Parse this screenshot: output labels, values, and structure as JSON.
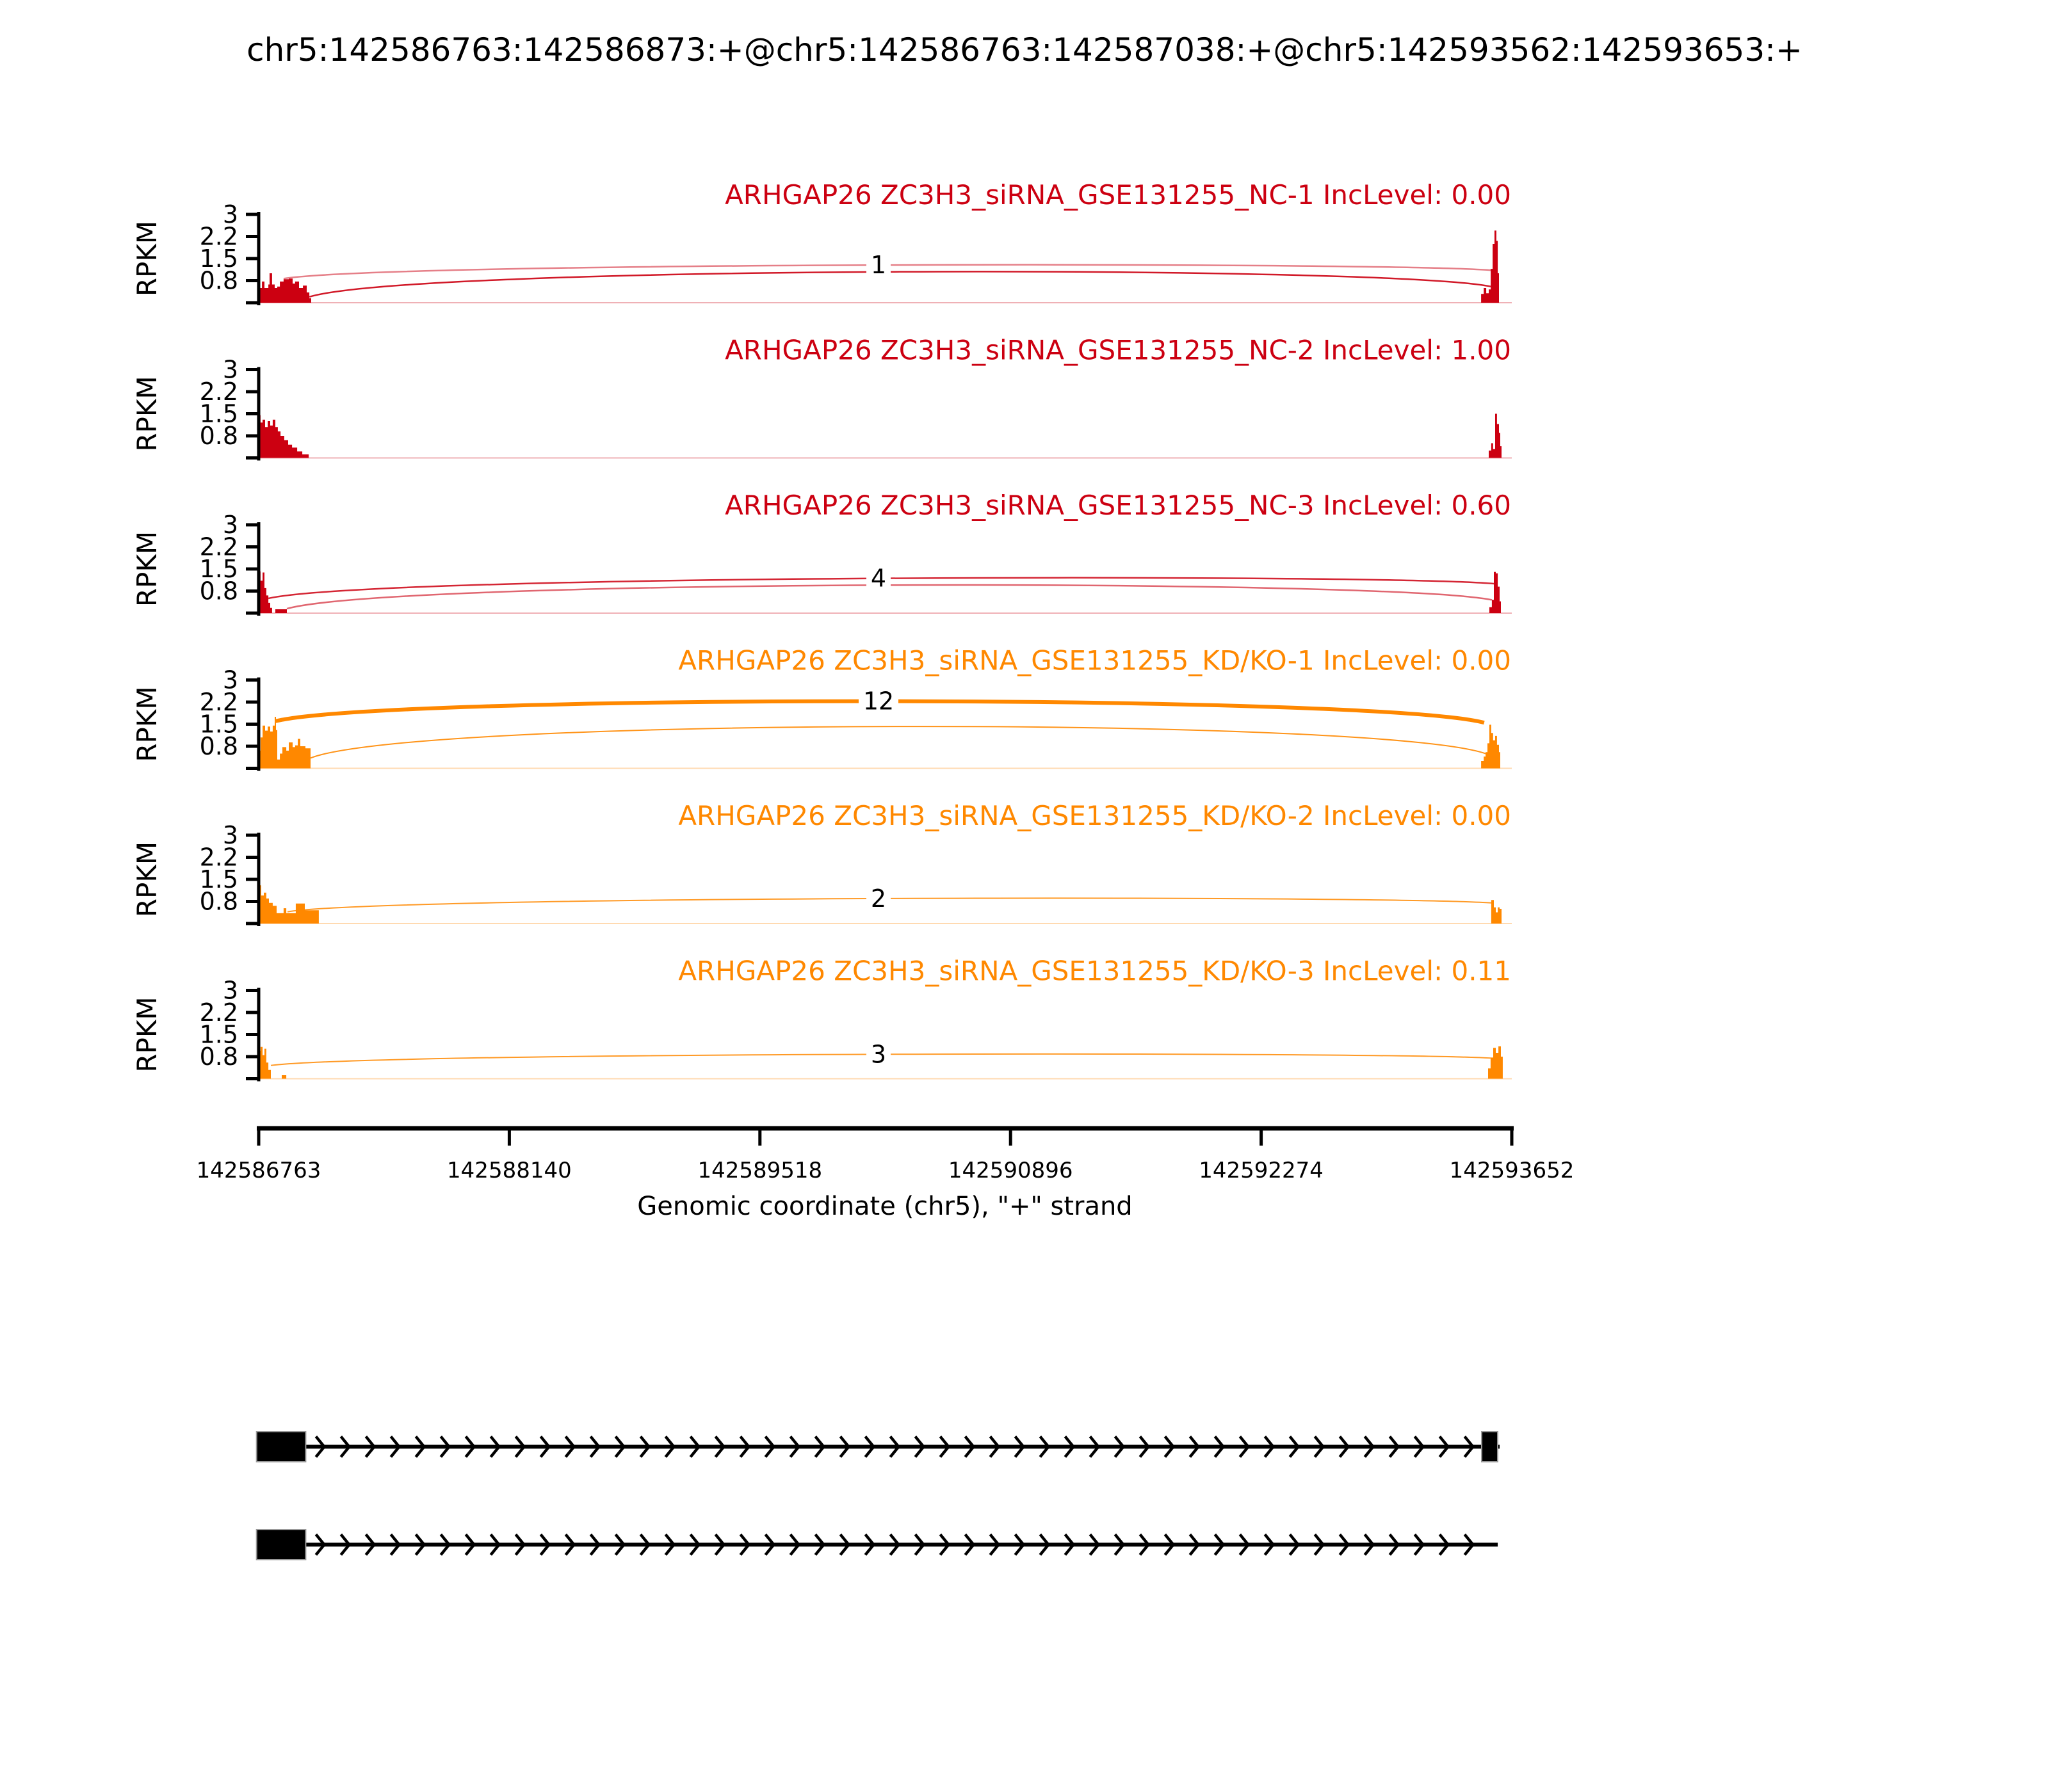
{
  "title": "chr5:142586763:142586873:+@chr5:142586763:142587038:+@chr5:142593562:142593653:+",
  "y_axis": {
    "label": "RPKM",
    "tick_labels": [
      "3",
      "2.2",
      "1.5",
      "0.8"
    ]
  },
  "x_axis": {
    "label": "Genomic coordinate (chr5), \"+\" strand",
    "tick_labels": [
      "142586763",
      "142588140",
      "142589518",
      "142590896",
      "142592274",
      "142593652"
    ]
  },
  "colors": {
    "group1": "#CC0011",
    "group2": "#FF8800"
  },
  "chart_data": {
    "type": "sashimi",
    "x_range_bp": [
      142586763,
      142593652
    ],
    "rpkm_axis_max": 3,
    "tracks": [
      {
        "label": "ARHGAP26 ZC3H3_siRNA_GSE131255_NC-1 IncLevel: 0.00",
        "inc_level": "0.00",
        "color_key": "group1",
        "coverage": [
          [
            [
              0,
              0.5
            ],
            [
              0.0026,
              0.72
            ],
            [
              0.0046,
              0.5
            ],
            [
              0.0077,
              0.62
            ],
            [
              0.0087,
              1.0
            ],
            [
              0.0107,
              0.62
            ],
            [
              0.0128,
              0.5
            ],
            [
              0.0148,
              0.55
            ],
            [
              0.0169,
              0.72
            ],
            [
              0.0199,
              0.8
            ],
            [
              0.024,
              0.82
            ],
            [
              0.0271,
              0.65
            ],
            [
              0.0291,
              0.72
            ],
            [
              0.0322,
              0.5
            ],
            [
              0.0353,
              0.58
            ],
            [
              0.0383,
              0.35
            ],
            [
              0.0404,
              0.15
            ],
            [
              0.0419,
              0
            ]
          ],
          [
            [
              0.9755,
              0.3
            ],
            [
              0.9776,
              0.5
            ],
            [
              0.9796,
              0.32
            ],
            [
              0.9816,
              0.45
            ],
            [
              0.9832,
              1.15
            ],
            [
              0.9847,
              2.0
            ],
            [
              0.9862,
              2.45
            ],
            [
              0.9877,
              2.1
            ],
            [
              0.9888,
              1.0
            ],
            [
              0.9898,
              0
            ]
          ]
        ],
        "junctions": [
          {
            "x1": 0.0199,
            "y1": 0.82,
            "x2": 0.9847,
            "y2": 1.1,
            "apex": 1.28,
            "count": "1",
            "width": 2.5,
            "opacity": 0.5
          },
          {
            "x1": 0.0404,
            "y1": 0.2,
            "x2": 0.9832,
            "y2": 0.55,
            "apex": 1.05,
            "count": null,
            "width": 2.5,
            "opacity": 0.9
          }
        ]
      },
      {
        "label": "ARHGAP26 ZC3H3_siRNA_GSE131255_NC-2 IncLevel: 1.00",
        "inc_level": "1.00",
        "color_key": "group1",
        "coverage": [
          [
            [
              0,
              1.45
            ],
            [
              0.0015,
              1.2
            ],
            [
              0.0031,
              1.3
            ],
            [
              0.0051,
              1.05
            ],
            [
              0.0072,
              1.25
            ],
            [
              0.0092,
              1.1
            ],
            [
              0.0112,
              1.3
            ],
            [
              0.0133,
              1.05
            ],
            [
              0.0153,
              0.9
            ],
            [
              0.0174,
              0.75
            ],
            [
              0.0204,
              0.6
            ],
            [
              0.0235,
              0.45
            ],
            [
              0.0266,
              0.35
            ],
            [
              0.0307,
              0.22
            ],
            [
              0.0348,
              0.12
            ],
            [
              0.0399,
              0
            ]
          ],
          [
            [
              0.9816,
              0.25
            ],
            [
              0.9836,
              0.5
            ],
            [
              0.9851,
              0.3
            ],
            [
              0.9867,
              1.5
            ],
            [
              0.9882,
              1.15
            ],
            [
              0.9898,
              0.85
            ],
            [
              0.9908,
              0.4
            ],
            [
              0.9918,
              0
            ]
          ]
        ],
        "junctions": []
      },
      {
        "label": "ARHGAP26 ZC3H3_siRNA_GSE131255_NC-3 IncLevel: 0.60",
        "inc_level": "0.60",
        "color_key": "group1",
        "coverage": [
          [
            [
              0,
              1.42
            ],
            [
              0.0015,
              1.1
            ],
            [
              0.0031,
              1.38
            ],
            [
              0.0046,
              0.85
            ],
            [
              0.0061,
              0.6
            ],
            [
              0.0077,
              0.35
            ],
            [
              0.0092,
              0.18
            ],
            [
              0.0107,
              0
            ]
          ],
          [
            [
              0.0133,
              0.13
            ],
            [
              0.0225,
              0
            ]
          ],
          [
            [
              0.9821,
              0.2
            ],
            [
              0.9841,
              0.45
            ],
            [
              0.9857,
              1.4
            ],
            [
              0.9872,
              1.35
            ],
            [
              0.9888,
              0.9
            ],
            [
              0.9903,
              0.4
            ],
            [
              0.9913,
              0
            ]
          ]
        ],
        "junctions": [
          {
            "x1": 0.0077,
            "y1": 0.5,
            "x2": 0.9857,
            "y2": 1.0,
            "apex": 1.18,
            "count": "4",
            "width": 2.5,
            "opacity": 0.85
          },
          {
            "x1": 0.0225,
            "y1": 0.15,
            "x2": 0.9841,
            "y2": 0.45,
            "apex": 0.95,
            "count": null,
            "width": 2.5,
            "opacity": 0.6
          }
        ]
      },
      {
        "label": "ARHGAP26 ZC3H3_siRNA_GSE131255_KD/KO-1 IncLevel: 0.00",
        "inc_level": "0.00",
        "color_key": "group2",
        "coverage": [
          [
            [
              0,
              0.6
            ],
            [
              0.0015,
              1.05
            ],
            [
              0.0031,
              1.45
            ],
            [
              0.0051,
              1.28
            ],
            [
              0.0072,
              1.42
            ],
            [
              0.0092,
              1.25
            ],
            [
              0.0112,
              1.45
            ],
            [
              0.0128,
              1.75
            ],
            [
              0.0138,
              1.3
            ],
            [
              0.0148,
              0.3
            ],
            [
              0.0169,
              0.5
            ],
            [
              0.0189,
              0.72
            ],
            [
              0.022,
              0.6
            ],
            [
              0.024,
              0.88
            ],
            [
              0.0271,
              0.72
            ],
            [
              0.0291,
              0.78
            ],
            [
              0.0312,
              1.0
            ],
            [
              0.0332,
              0.75
            ],
            [
              0.0373,
              0.68
            ],
            [
              0.0414,
              0
            ]
          ],
          [
            [
              0.9755,
              0.25
            ],
            [
              0.9776,
              0.4
            ],
            [
              0.9791,
              0.55
            ],
            [
              0.9806,
              0.85
            ],
            [
              0.9821,
              1.48
            ],
            [
              0.9836,
              1.2
            ],
            [
              0.9851,
              0.95
            ],
            [
              0.9867,
              1.1
            ],
            [
              0.9882,
              0.8
            ],
            [
              0.9898,
              0.55
            ],
            [
              0.9908,
              0
            ]
          ]
        ],
        "junctions": [
          {
            "x1": 0.0133,
            "y1": 1.6,
            "x2": 0.978,
            "y2": 1.55,
            "apex": 2.28,
            "count": "12",
            "width": 6,
            "opacity": 1
          },
          {
            "x1": 0.0414,
            "y1": 0.35,
            "x2": 0.9791,
            "y2": 0.5,
            "apex": 1.42,
            "count": null,
            "width": 2,
            "opacity": 0.9
          }
        ]
      },
      {
        "label": "ARHGAP26 ZC3H3_siRNA_GSE131255_KD/KO-2 IncLevel: 0.00",
        "inc_level": "0.00",
        "color_key": "group2",
        "coverage": [
          [
            [
              0,
              1.3
            ],
            [
              0.002,
              0.95
            ],
            [
              0.0041,
              1.05
            ],
            [
              0.0061,
              0.85
            ],
            [
              0.0082,
              0.7
            ],
            [
              0.0112,
              0.6
            ],
            [
              0.0143,
              0.35
            ],
            [
              0.0184,
              0.35
            ],
            [
              0.0199,
              0.52
            ],
            [
              0.022,
              0.35
            ],
            [
              0.0266,
              0.35
            ],
            [
              0.0296,
              0.68
            ],
            [
              0.0368,
              0.45
            ],
            [
              0.048,
              0
            ]
          ],
          [
            [
              0.9836,
              0.8
            ],
            [
              0.9857,
              0.55
            ],
            [
              0.9872,
              0.38
            ],
            [
              0.9888,
              0.55
            ],
            [
              0.9903,
              0.5
            ],
            [
              0.9918,
              0
            ]
          ]
        ],
        "junctions": [
          {
            "x1": 0.023,
            "y1": 0.4,
            "x2": 0.9836,
            "y2": 0.7,
            "apex": 0.85,
            "count": "2",
            "width": 2,
            "opacity": 0.85
          }
        ]
      },
      {
        "label": "ARHGAP26 ZC3H3_siRNA_GSE131255_KD/KO-3 IncLevel: 0.11",
        "inc_level": "0.11",
        "color_key": "group2",
        "coverage": [
          [
            [
              0,
              0.95
            ],
            [
              0.0015,
              1.08
            ],
            [
              0.0031,
              0.8
            ],
            [
              0.0046,
              1.02
            ],
            [
              0.0061,
              0.55
            ],
            [
              0.0077,
              0.3
            ],
            [
              0.0097,
              0
            ]
          ],
          [
            [
              0.0184,
              0.12
            ],
            [
              0.022,
              0
            ]
          ],
          [
            [
              0.9811,
              0.35
            ],
            [
              0.9831,
              0.72
            ],
            [
              0.9852,
              1.05
            ],
            [
              0.9872,
              0.88
            ],
            [
              0.9893,
              1.1
            ],
            [
              0.9913,
              0.75
            ],
            [
              0.9928,
              0
            ]
          ]
        ],
        "junctions": [
          {
            "x1": 0.0097,
            "y1": 0.45,
            "x2": 0.9831,
            "y2": 0.7,
            "apex": 0.83,
            "count": "3",
            "width": 2,
            "opacity": 0.85
          }
        ]
      }
    ],
    "transcripts": [
      {
        "exons": [
          {
            "x1": -0.0017,
            "x2": 0.0375
          },
          {
            "x1": 0.976,
            "x2": 0.9888
          }
        ],
        "line_end": 0.9903
      },
      {
        "exons": [
          {
            "x1": -0.0017,
            "x2": 0.0375
          }
        ],
        "line_end": 0.9888
      }
    ]
  }
}
